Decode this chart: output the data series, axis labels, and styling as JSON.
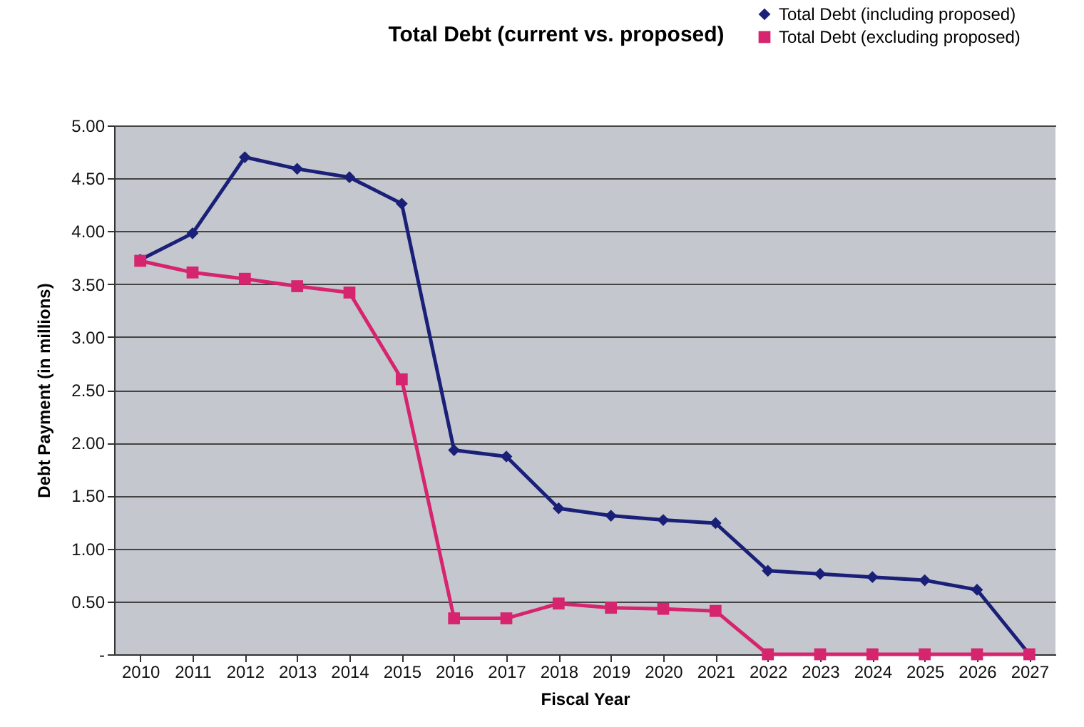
{
  "chart_data": {
    "type": "line",
    "title": "Total Debt (current vs. proposed)",
    "xlabel": "Fiscal Year",
    "ylabel": "Debt Payment (in millions)",
    "categories": [
      "2010",
      "2011",
      "2012",
      "2013",
      "2014",
      "2015",
      "2016",
      "2017",
      "2018",
      "2019",
      "2020",
      "2021",
      "2022",
      "2023",
      "2024",
      "2025",
      "2026",
      "2027"
    ],
    "series": [
      {
        "name": "Total Debt (including proposed)",
        "color": "#1a1f78",
        "marker": "diamond",
        "values": [
          3.73,
          3.98,
          4.7,
          4.59,
          4.51,
          4.26,
          1.93,
          1.87,
          1.38,
          1.31,
          1.27,
          1.24,
          0.79,
          0.76,
          0.73,
          0.7,
          0.61,
          0
        ]
      },
      {
        "name": "Total Debt (excluding proposed)",
        "color": "#d6246e",
        "marker": "square",
        "values": [
          3.72,
          3.61,
          3.55,
          3.48,
          3.42,
          2.6,
          0.34,
          0.34,
          0.48,
          0.44,
          0.43,
          0.41,
          0,
          0,
          0,
          0,
          0,
          0
        ]
      }
    ],
    "ylim": [
      0,
      5
    ],
    "yticks": [
      {
        "value": 0,
        "label": "-"
      },
      {
        "value": 0.5,
        "label": "0.50"
      },
      {
        "value": 1,
        "label": "1.00"
      },
      {
        "value": 1.5,
        "label": "1.50"
      },
      {
        "value": 2,
        "label": "2.00"
      },
      {
        "value": 2.5,
        "label": "2.50"
      },
      {
        "value": 3,
        "label": "3.00"
      },
      {
        "value": 3.5,
        "label": "3.50"
      },
      {
        "value": 4,
        "label": "4.00"
      },
      {
        "value": 4.5,
        "label": "4.50"
      },
      {
        "value": 5,
        "label": "5.00"
      }
    ],
    "grid": "y",
    "legend": "top right",
    "line_style": "solid"
  }
}
